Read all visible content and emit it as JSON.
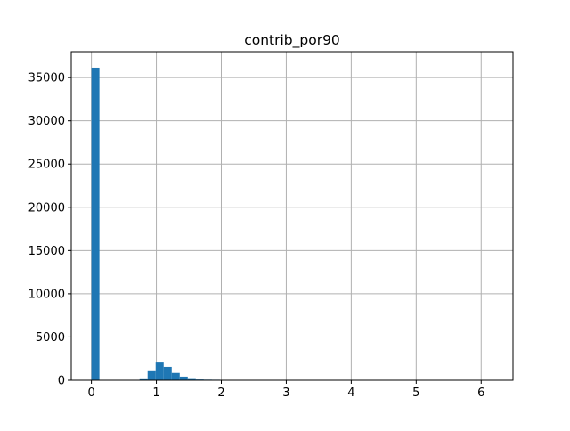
{
  "chart_data": {
    "type": "bar",
    "subtype": "histogram",
    "title": "contrib_por90",
    "xlabel": "",
    "ylabel": "",
    "xlim": [
      -0.31,
      6.49
    ],
    "ylim": [
      0,
      38000
    ],
    "grid": true,
    "bar_color": "#1f77b4",
    "grid_color": "#b0b0b0",
    "bin_width": 0.1236,
    "bins": [
      {
        "x0": 0.0,
        "x1": 0.1236,
        "count": 36150
      },
      {
        "x0": 0.7416,
        "x1": 0.8652,
        "count": 120
      },
      {
        "x0": 0.8652,
        "x1": 0.9888,
        "count": 1050
      },
      {
        "x0": 0.9888,
        "x1": 1.1124,
        "count": 2050
      },
      {
        "x0": 1.1124,
        "x1": 1.236,
        "count": 1550
      },
      {
        "x0": 1.236,
        "x1": 1.3596,
        "count": 850
      },
      {
        "x0": 1.3596,
        "x1": 1.4832,
        "count": 420
      },
      {
        "x0": 1.4832,
        "x1": 1.6068,
        "count": 140
      },
      {
        "x0": 1.6068,
        "x1": 1.7304,
        "count": 90
      },
      {
        "x0": 1.7304,
        "x1": 1.854,
        "count": 70
      },
      {
        "x0": 1.854,
        "x1": 1.9776,
        "count": 60
      },
      {
        "x0": 1.9776,
        "x1": 2.1012,
        "count": 50
      },
      {
        "x0": 2.1012,
        "x1": 2.2248,
        "count": 40
      },
      {
        "x0": 2.2248,
        "x1": 2.3484,
        "count": 30
      },
      {
        "x0": 2.3484,
        "x1": 2.472,
        "count": 20
      },
      {
        "x0": 2.472,
        "x1": 2.5956,
        "count": 8
      },
      {
        "x0": 2.5956,
        "x1": 2.7192,
        "count": 5
      },
      {
        "x0": 2.7192,
        "x1": 2.8428,
        "count": 4
      },
      {
        "x0": 2.8428,
        "x1": 2.9664,
        "count": 3
      },
      {
        "x0": 2.9664,
        "x1": 3.09,
        "count": 2
      }
    ],
    "x_ticks": [
      {
        "value": 0,
        "label": "0"
      },
      {
        "value": 1,
        "label": "1"
      },
      {
        "value": 2,
        "label": "2"
      },
      {
        "value": 3,
        "label": "3"
      },
      {
        "value": 4,
        "label": "4"
      },
      {
        "value": 5,
        "label": "5"
      },
      {
        "value": 6,
        "label": "6"
      }
    ],
    "y_ticks": [
      {
        "value": 0,
        "label": "0"
      },
      {
        "value": 5000,
        "label": "5000"
      },
      {
        "value": 10000,
        "label": "10000"
      },
      {
        "value": 15000,
        "label": "15000"
      },
      {
        "value": 20000,
        "label": "20000"
      },
      {
        "value": 25000,
        "label": "25000"
      },
      {
        "value": 30000,
        "label": "30000"
      },
      {
        "value": 35000,
        "label": "35000"
      }
    ]
  }
}
